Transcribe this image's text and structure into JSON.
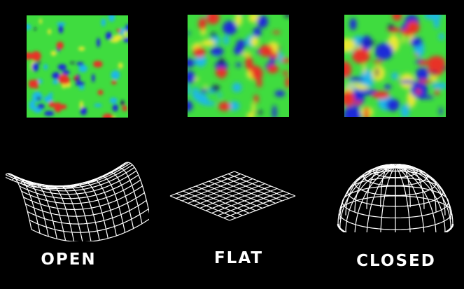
{
  "panels": [
    {
      "label": "OPEN",
      "shape": "saddle"
    },
    {
      "label": "FLAT",
      "shape": "plane"
    },
    {
      "label": "CLOSED",
      "shape": "sphere"
    }
  ],
  "colors": {
    "background": "#000000",
    "base": "#3fdc3f",
    "blob_colors": [
      "#1a2bd8",
      "#1c1466",
      "#1fb8e8",
      "#e8e832",
      "#e83226"
    ],
    "wireframe": "#ffffff"
  }
}
